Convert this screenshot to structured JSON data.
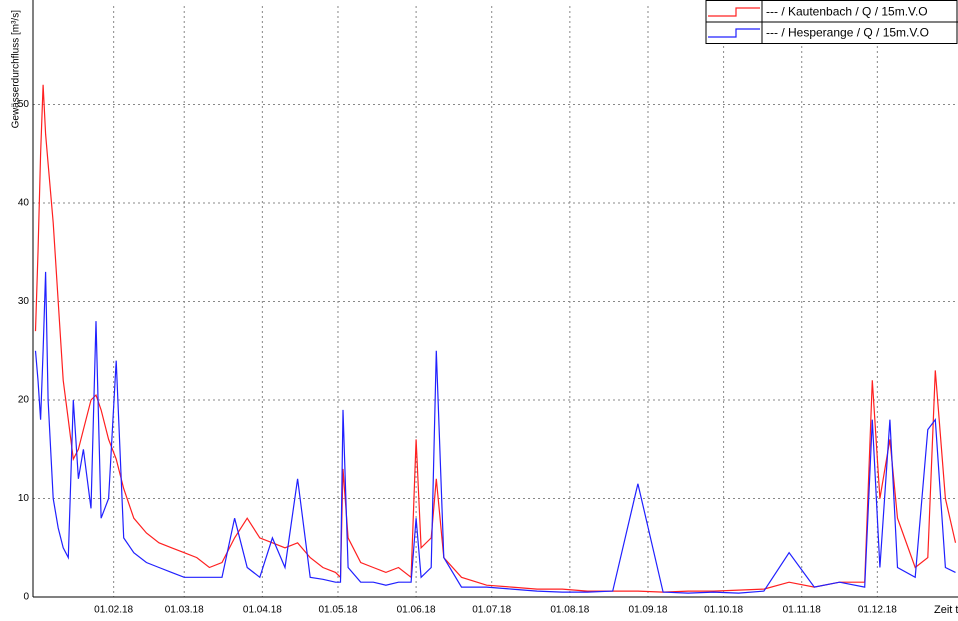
{
  "chart_data": {
    "type": "line",
    "y_label": "Gewässerdurchfluss [m³/s]",
    "x_label": "Zeit t",
    "x": [
      1,
      2,
      3,
      4,
      5,
      6,
      8,
      10,
      12,
      14,
      16,
      18,
      20,
      23,
      25,
      27,
      30,
      33,
      36,
      40,
      45,
      50,
      55,
      60,
      65,
      70,
      75,
      80,
      85,
      90,
      95,
      100,
      105,
      110,
      115,
      120,
      122,
      123,
      125,
      130,
      135,
      140,
      145,
      150,
      152,
      154,
      158,
      160,
      163,
      170,
      180,
      190,
      200,
      210,
      220,
      230,
      240,
      250,
      260,
      270,
      280,
      290,
      300,
      310,
      320,
      330,
      333,
      336,
      340,
      343,
      350,
      355,
      358,
      362,
      366
    ],
    "series": [
      {
        "name": "--- / Kautenbach / Q / 15m.V.O",
        "color": "#ff2020",
        "values": [
          27,
          35,
          45,
          52,
          47,
          44,
          38,
          30,
          22,
          18,
          14,
          15,
          17,
          20,
          20.5,
          19,
          16,
          14,
          11,
          8,
          6.5,
          5.5,
          5,
          4.5,
          4,
          3,
          3.5,
          6,
          8,
          6,
          5.5,
          5,
          5.5,
          4,
          3,
          2.5,
          2,
          13,
          6,
          3.5,
          3,
          2.5,
          3,
          2,
          16,
          5,
          6,
          12,
          4,
          2,
          1.2,
          1,
          0.8,
          0.8,
          0.6,
          0.6,
          0.6,
          0.5,
          0.6,
          0.6,
          0.7,
          0.8,
          1.5,
          1,
          1.5,
          1.5,
          22,
          10,
          16,
          8,
          3,
          4,
          23,
          10,
          5.5
        ]
      },
      {
        "name": "--- / Hesperange / Q / 15m.V.O",
        "color": "#2020ff",
        "values": [
          25,
          22,
          18,
          25,
          33,
          20,
          10,
          7,
          5,
          4,
          20,
          12,
          15,
          9,
          28,
          8,
          10,
          24,
          6,
          4.5,
          3.5,
          3,
          2.5,
          2,
          2,
          2,
          2,
          8,
          3,
          2,
          6,
          3,
          12,
          2,
          1.8,
          1.5,
          1.5,
          19,
          3,
          1.5,
          1.5,
          1.2,
          1.5,
          1.5,
          8,
          2,
          3,
          25,
          4,
          1,
          1,
          0.8,
          0.6,
          0.5,
          0.5,
          0.6,
          11.5,
          0.5,
          0.4,
          0.5,
          0.4,
          0.6,
          4.5,
          1,
          1.5,
          1,
          18,
          3,
          18,
          3,
          2,
          17,
          18,
          3,
          2.5
        ]
      }
    ],
    "xlim": [
      0,
      367
    ],
    "xticks": [
      {
        "value": 32,
        "label": "01.02.18"
      },
      {
        "value": 60,
        "label": "01.03.18"
      },
      {
        "value": 91,
        "label": "01.04.18"
      },
      {
        "value": 121,
        "label": "01.05.18"
      },
      {
        "value": 152,
        "label": "01.06.18"
      },
      {
        "value": 182,
        "label": "01.07.18"
      },
      {
        "value": 213,
        "label": "01.08.18"
      },
      {
        "value": 244,
        "label": "01.09.18"
      },
      {
        "value": 274,
        "label": "01.10.18"
      },
      {
        "value": 305,
        "label": "01.11.18"
      },
      {
        "value": 335,
        "label": "01.12.18"
      }
    ],
    "ylim": [
      0,
      60
    ],
    "yticks": [
      0,
      10,
      20,
      30,
      40,
      50
    ],
    "grid": true,
    "legend": "top-right"
  }
}
